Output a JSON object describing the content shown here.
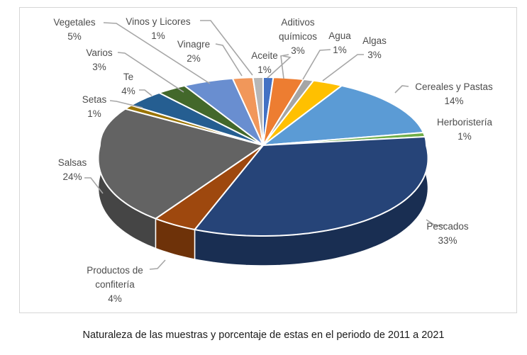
{
  "chart_data": {
    "type": "pie",
    "style": "3d-pie",
    "title": "Naturaleza de las muestras y porcentaje de estas en el periodo de 2011 a 2021",
    "unit": "%",
    "total": 100,
    "legend": false,
    "labels_position": "outside-with-leader-lines",
    "start_angle_deg": 0,
    "clockwise": true,
    "slices": [
      {
        "label": "Aceite",
        "value": 1,
        "color": "#4472C4",
        "side_color": "#2F508A"
      },
      {
        "label": "Aditivos químicos",
        "value": 3,
        "color": "#ED7D31",
        "side_color": "#A85722"
      },
      {
        "label": "Agua",
        "value": 1,
        "color": "#A5A5A5",
        "side_color": "#747474"
      },
      {
        "label": "Algas",
        "value": 3,
        "color": "#FFC000",
        "side_color": "#B38600"
      },
      {
        "label": "Cereales y Pastas",
        "value": 14,
        "color": "#5B9BD5",
        "side_color": "#3F6D96"
      },
      {
        "label": "Herboristería",
        "value": 1,
        "color": "#70AD47",
        "side_color": "#4E7931"
      },
      {
        "label": "Pescados",
        "value": 33,
        "color": "#264478",
        "side_color": "#192E52"
      },
      {
        "label": "Productos de confitería",
        "value": 4,
        "color": "#9E480E",
        "side_color": "#6E3209"
      },
      {
        "label": "Salsas",
        "value": 24,
        "color": "#636363",
        "side_color": "#454545"
      },
      {
        "label": "Setas",
        "value": 1,
        "color": "#997300",
        "side_color": "#6B5000"
      },
      {
        "label": "Te",
        "value": 4,
        "color": "#255E91",
        "side_color": "#194166"
      },
      {
        "label": "Varios",
        "value": 3,
        "color": "#43682B",
        "side_color": "#2E481D"
      },
      {
        "label": "Vegetales",
        "value": 5,
        "color": "#698ED0",
        "side_color": "#49639A"
      },
      {
        "label": "Vinagre",
        "value": 2,
        "color": "#F1975A",
        "side_color": "#BD6F3C"
      },
      {
        "label": "Vinos y Licores",
        "value": 1,
        "color": "#B7B7B7",
        "side_color": "#808080"
      }
    ]
  },
  "colors": {
    "chart_border": "#D6D6D6",
    "label_text": "#4D4D4D",
    "leader_line": "#A6A6A6",
    "caption_text": "#1A1A1A",
    "slice_gap": "#FFFFFF"
  }
}
